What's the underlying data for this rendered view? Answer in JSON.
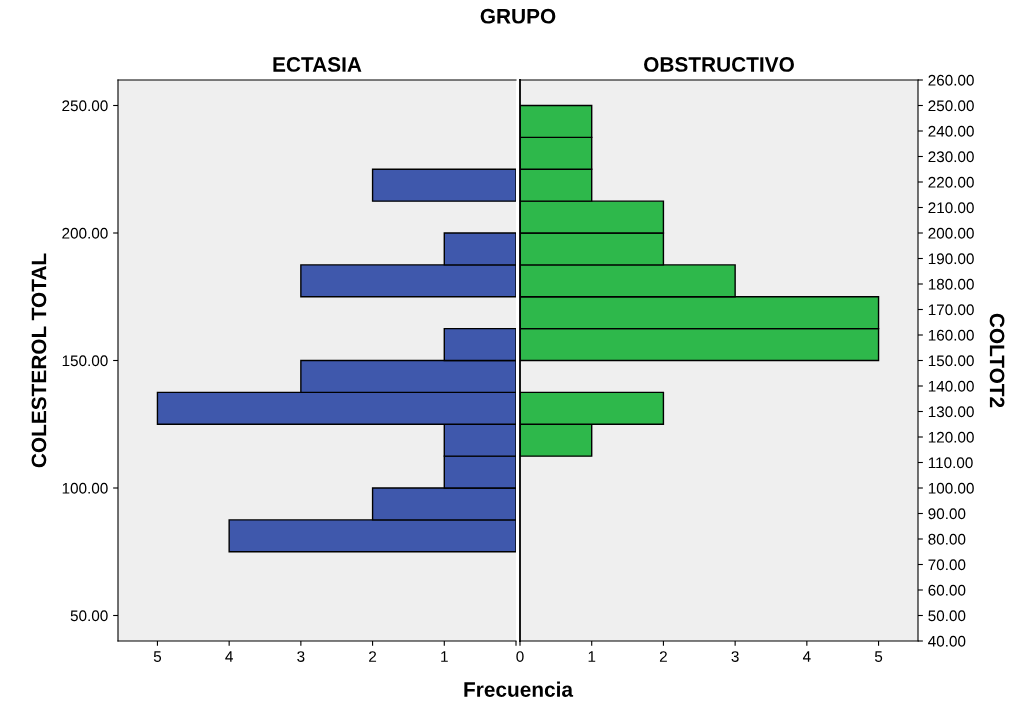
{
  "chart_data": [
    {
      "type": "histogram",
      "orientation": "horizontal",
      "title": "ECTASIA",
      "xlabel": "Frecuencia",
      "ylabel": "COLESTEROL TOTAL",
      "annotations": [
        "GRUPO"
      ],
      "color": "#3f58ac",
      "bins": [
        75,
        87.5,
        100,
        112.5,
        125,
        137.5,
        150,
        162.5,
        175,
        187.5,
        200,
        212.5,
        225,
        237.5,
        250
      ],
      "values": [
        4,
        2,
        1,
        1,
        5,
        3,
        1,
        0,
        3,
        1,
        0,
        2,
        0,
        0
      ],
      "xlim": [
        5.55,
        0
      ],
      "xticks": [
        5,
        4,
        3,
        2,
        1,
        {
          "value": 0,
          "label": null
        }
      ],
      "ylim": [
        40,
        260
      ],
      "yticks": [
        {
          "value": 50,
          "label": "50.00"
        },
        {
          "value": 100,
          "label": "100.00"
        },
        {
          "value": 150,
          "label": "150.00"
        },
        {
          "value": 200,
          "label": "200.00"
        },
        {
          "value": 250,
          "label": "250.00"
        }
      ],
      "grid": false
    },
    {
      "type": "histogram",
      "orientation": "horizontal",
      "title": "OBSTRUCTIVO",
      "ylabel": "COLTOT2",
      "color": "#2eb84b",
      "bins": [
        75,
        87.5,
        100,
        112.5,
        125,
        137.5,
        150,
        162.5,
        175,
        187.5,
        200,
        212.5,
        225,
        237.5,
        250
      ],
      "values": [
        0,
        0,
        0,
        1,
        2,
        0,
        5,
        5,
        3,
        2,
        2,
        1,
        1,
        1
      ],
      "xlim": [
        0,
        5.55
      ],
      "xticks": [
        0,
        1,
        2,
        3,
        4,
        5
      ],
      "ylim": [
        40,
        260
      ],
      "yticks": [
        {
          "value": 40,
          "label": "40.00"
        },
        {
          "value": 50,
          "label": "50.00"
        },
        {
          "value": 60,
          "label": "60.00"
        },
        {
          "value": 70,
          "label": "70.00"
        },
        {
          "value": 80,
          "label": "80.00"
        },
        {
          "value": 90,
          "label": "90.00"
        },
        {
          "value": 100,
          "label": "100.00"
        },
        {
          "value": 110,
          "label": "110.00"
        },
        {
          "value": 120,
          "label": "120.00"
        },
        {
          "value": 130,
          "label": "130.00"
        },
        {
          "value": 140,
          "label": "140.00"
        },
        {
          "value": 150,
          "label": "150.00"
        },
        {
          "value": 160,
          "label": "160.00"
        },
        {
          "value": 170,
          "label": "170.00"
        },
        {
          "value": 180,
          "label": "180.00"
        },
        {
          "value": 190,
          "label": "190.00"
        },
        {
          "value": 200,
          "label": "200.00"
        },
        {
          "value": 210,
          "label": "210.00"
        },
        {
          "value": 220,
          "label": "220.00"
        },
        {
          "value": 230,
          "label": "230.00"
        },
        {
          "value": 240,
          "label": "240.00"
        },
        {
          "value": 250,
          "label": "250.00"
        },
        {
          "value": 260,
          "label": "260.00"
        }
      ],
      "grid": false
    }
  ]
}
